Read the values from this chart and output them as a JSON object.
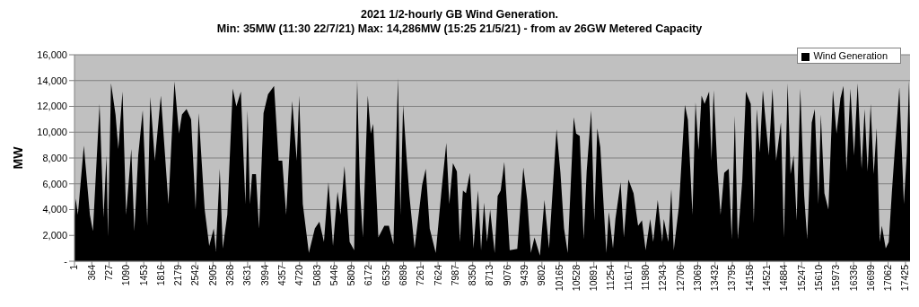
{
  "chart_data": {
    "type": "area",
    "title": "2021 1/2-hourly GB Wind Generation.",
    "subtitle": "Min: 35MW (11:30 22/7/21) Max: 14,286MW (15:25 21/5/21) - from av 26GW Metered Capacity",
    "ylabel": "MW",
    "x": [
      1,
      26,
      72,
      197,
      324,
      387,
      527,
      609,
      672,
      704,
      767,
      862,
      920,
      1008,
      1084,
      1192,
      1256,
      1337,
      1432,
      1527,
      1591,
      1685,
      1812,
      1971,
      2097,
      2192,
      2255,
      2351,
      2446,
      2541,
      2604,
      2731,
      2826,
      2921,
      2965,
      3047,
      3110,
      3205,
      3319,
      3395,
      3490,
      3585,
      3630,
      3680,
      3725,
      3806,
      3870,
      3965,
      4059,
      4186,
      4281,
      4357,
      4439,
      4566,
      4661,
      4712,
      4788,
      4915,
      5041,
      5136,
      5231,
      5326,
      5421,
      5516,
      5579,
      5662,
      5770,
      5865,
      5928,
      5985,
      6048,
      6150,
      6213,
      6264,
      6372,
      6498,
      6593,
      6688,
      6784,
      6835,
      6891,
      6961,
      7024,
      7132,
      7290,
      7366,
      7449,
      7575,
      7702,
      7797,
      7860,
      7936,
      8019,
      8082,
      8145,
      8209,
      8291,
      8367,
      8462,
      8526,
      8589,
      8652,
      8716,
      8811,
      8874,
      8937,
      9013,
      9127,
      9285,
      9412,
      9494,
      9570,
      9646,
      9760,
      9855,
      9950,
      10108,
      10190,
      10266,
      10342,
      10469,
      10519,
      10595,
      10677,
      10740,
      10836,
      10900,
      10963,
      11026,
      11153,
      11204,
      11292,
      11343,
      11451,
      11520,
      11615,
      11723,
      11818,
      11900,
      11976,
      12072,
      12135,
      12230,
      12325,
      12357,
      12452,
      12515,
      12566,
      12674,
      12800,
      12863,
      12958,
      13022,
      13085,
      13149,
      13212,
      13307,
      13358,
      13402,
      13484,
      13548,
      13624,
      13719,
      13782,
      13846,
      13909,
      14004,
      14079,
      14180,
      14244,
      14307,
      14370,
      14434,
      14510,
      14560,
      14636,
      14712,
      14813,
      14876,
      14953,
      15016,
      15079,
      15143,
      15219,
      15301,
      15364,
      15459,
      15523,
      15599,
      15650,
      15725,
      15808,
      15903,
      15979,
      16061,
      16125,
      16188,
      16270,
      16346,
      16422,
      16505,
      16568,
      16631,
      16695,
      16758,
      16821,
      16885,
      16929,
      17011,
      17074,
      17138,
      17201,
      17296,
      17391,
      17454,
      17499,
      17520
    ],
    "series": [
      {
        "name": "Wind Generation",
        "color": "#000000",
        "values": [
          3500,
          4850,
          3600,
          8950,
          3600,
          2330,
          12200,
          3400,
          8200,
          1900,
          13800,
          11350,
          8700,
          13150,
          3600,
          8700,
          2330,
          8200,
          11700,
          2750,
          12730,
          7800,
          12840,
          4430,
          13930,
          9900,
          11370,
          11790,
          11000,
          4000,
          11480,
          4000,
          1180,
          2540,
          760,
          7170,
          1000,
          3600,
          13370,
          12000,
          13150,
          4430,
          11700,
          4430,
          6750,
          6750,
          2540,
          11480,
          12940,
          13580,
          7800,
          7800,
          3600,
          12420,
          7800,
          12840,
          4430,
          650,
          2540,
          3060,
          1500,
          6120,
          1180,
          5380,
          3600,
          7380,
          1500,
          860,
          14000,
          5690,
          1850,
          12840,
          9900,
          10640,
          1850,
          2750,
          2750,
          1300,
          14200,
          3600,
          12100,
          8200,
          5060,
          1000,
          5900,
          7170,
          2540,
          650,
          5690,
          9160,
          4430,
          7600,
          6960,
          1500,
          5480,
          5270,
          6860,
          1000,
          5480,
          860,
          4540,
          1500,
          4000,
          650,
          5060,
          5480,
          7690,
          860,
          960,
          7270,
          4750,
          650,
          1850,
          440,
          4750,
          1000,
          10220,
          6860,
          2540,
          650,
          11160,
          9900,
          9700,
          1700,
          6960,
          11690,
          3170,
          10300,
          8830,
          650,
          3810,
          1000,
          3270,
          6120,
          1850,
          6330,
          5270,
          2750,
          3170,
          860,
          3270,
          1500,
          4750,
          1500,
          3270,
          1500,
          5590,
          860,
          4220,
          12100,
          10950,
          3600,
          12320,
          8620,
          12840,
          12200,
          13150,
          7800,
          13260,
          6960,
          3600,
          6860,
          7170,
          1700,
          11270,
          1700,
          6330,
          13150,
          12200,
          2960,
          11790,
          8410,
          13260,
          10110,
          8200,
          13370,
          7800,
          10740,
          1850,
          13790,
          6750,
          8200,
          3170,
          13370,
          5060,
          1700,
          10740,
          11790,
          4430,
          11370,
          5270,
          4000,
          13260,
          9900,
          12630,
          13580,
          6960,
          13370,
          8200,
          13790,
          7170,
          11790,
          6960,
          12200,
          6750,
          10320,
          1500,
          2750,
          1000,
          1500,
          5270,
          8620,
          13470,
          4430,
          8410,
          14000,
          10110
        ]
      }
    ],
    "xlim": [
      1,
      17520
    ],
    "xticks": [
      1,
      364,
      727,
      1090,
      1453,
      1816,
      2179,
      2542,
      2905,
      3268,
      3631,
      3994,
      4357,
      4720,
      5083,
      5446,
      5809,
      6172,
      6535,
      6898,
      7261,
      7624,
      7987,
      8350,
      8713,
      9076,
      9439,
      9802,
      10165,
      10528,
      10891,
      11254,
      11617,
      11980,
      12343,
      12706,
      13069,
      13432,
      13795,
      14158,
      14521,
      14884,
      15247,
      15610,
      15973,
      16336,
      16699,
      17062,
      17425
    ],
    "ylim": [
      0,
      16000
    ],
    "yticks": [
      {
        "value": 0,
        "label": "-"
      },
      {
        "value": 2000,
        "label": "2,000"
      },
      {
        "value": 4000,
        "label": "4,000"
      },
      {
        "value": 6000,
        "label": "6,000"
      },
      {
        "value": 8000,
        "label": "8,000"
      },
      {
        "value": 10000,
        "label": "10,000"
      },
      {
        "value": 12000,
        "label": "12,000"
      },
      {
        "value": 14000,
        "label": "14,000"
      },
      {
        "value": 16000,
        "label": "16,000"
      }
    ],
    "grid": "y",
    "legend": "top right"
  }
}
